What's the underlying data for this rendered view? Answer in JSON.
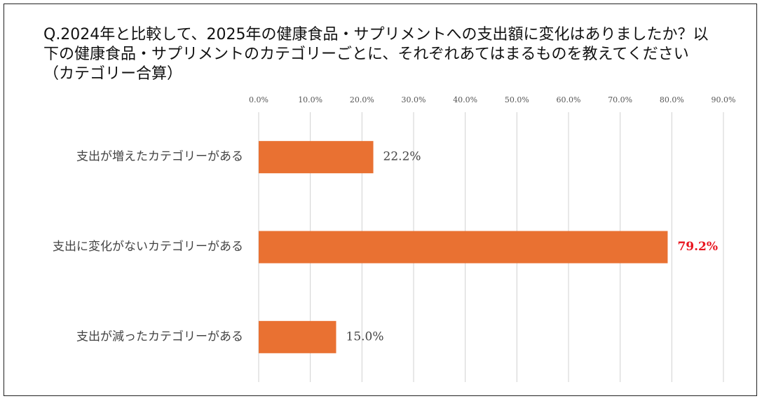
{
  "chart_data": {
    "type": "hbar",
    "title": "Q.2024年と比較して、2025年の健康食品・サプリメントへの支出額に変化はありましたか？以下の健康食品・サプリメントのカテゴリーごとに、それぞれあてはまるものを教えてください（カテゴリー合算）",
    "categories": [
      "支出が増えたカテゴリーがある",
      "支出に変化がないカテゴリーがある",
      "支出が減ったカテゴリーがある"
    ],
    "values": [
      22.2,
      79.2,
      15.0
    ],
    "value_labels": [
      "22.2%",
      "79.2%",
      "15.0%"
    ],
    "value_label_colors": [
      "#444444",
      "#e8141e",
      "#444444"
    ],
    "color": "#e97132",
    "xlim": [
      0,
      90
    ],
    "xticks": [
      {
        "value": 0,
        "label": "0.0%"
      },
      {
        "value": 10,
        "label": "10.0%"
      },
      {
        "value": 20,
        "label": "20.0%"
      },
      {
        "value": 30,
        "label": "30.0%"
      },
      {
        "value": 40,
        "label": "40.0%"
      },
      {
        "value": 50,
        "label": "50.0%"
      },
      {
        "value": 60,
        "label": "60.0%"
      },
      {
        "value": 70,
        "label": "70.0%"
      },
      {
        "value": 80,
        "label": "80.0%"
      },
      {
        "value": 90,
        "label": "90.0%"
      }
    ],
    "grid": true
  }
}
